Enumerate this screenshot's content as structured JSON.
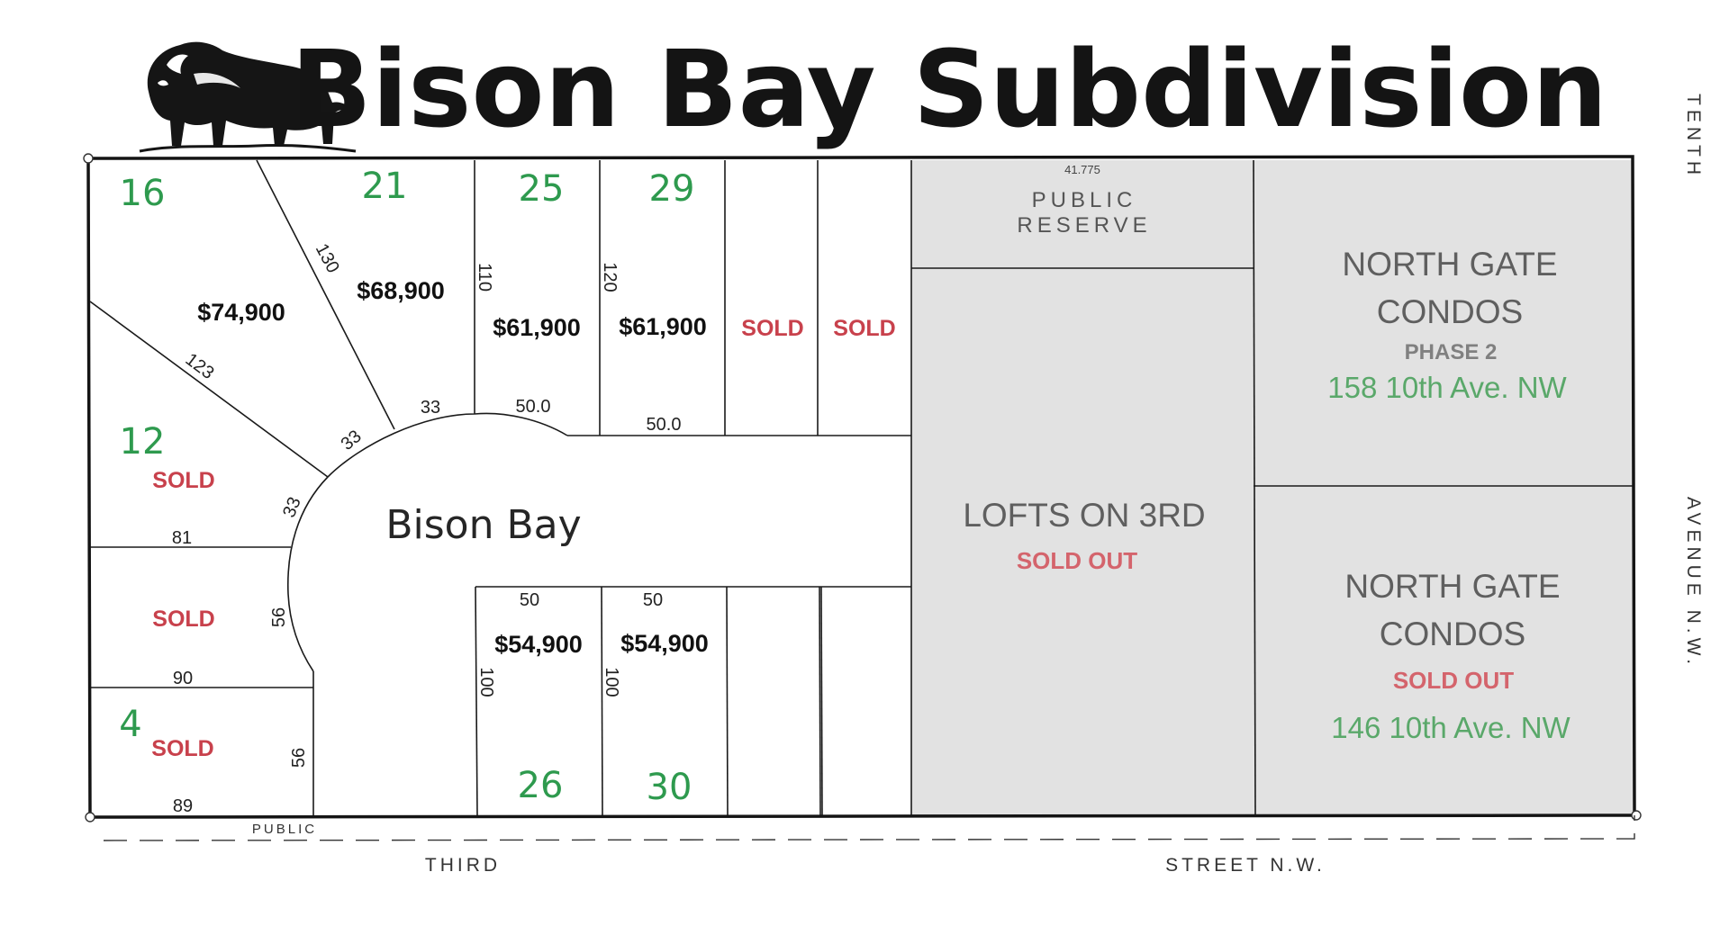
{
  "title": "Bison Bay Subdivision",
  "logo": {
    "icon": "bison-icon"
  },
  "colors": {
    "lot_number": "#2e9a4e",
    "sold": "#c8414c",
    "condo_text": "#5f5f5f",
    "address": "#5aa86a",
    "shaded_area": "#e2e2e2",
    "line": "#1a1a1a"
  },
  "street_name": "Bison Bay",
  "roads": {
    "third": "THIRD",
    "street_nw": "STREET  N.W.",
    "tenth": "TENTH",
    "avenue_nw": "AVENUE  N.W.",
    "public_bottom": "PUBLIC"
  },
  "public_reserve": {
    "line1": "PUBLIC",
    "line2": "RESERVE",
    "dimension": "41.775"
  },
  "lots": {
    "lot16": {
      "number": "16",
      "price": "$74,900"
    },
    "lot21": {
      "number": "21",
      "price": "$68,900"
    },
    "lot25": {
      "number": "25",
      "price": "$61,900"
    },
    "lot29": {
      "number": "29",
      "price": "$61,900"
    },
    "lot_n1": {
      "status": "SOLD"
    },
    "lot_n2": {
      "status": "SOLD"
    },
    "lot12": {
      "number": "12",
      "status": "SOLD"
    },
    "lot_w": {
      "status": "SOLD"
    },
    "lot4": {
      "number": "4",
      "status": "SOLD"
    },
    "lot26": {
      "number": "26",
      "price": "$54,900"
    },
    "lot30": {
      "number": "30",
      "price": "$54,900"
    }
  },
  "buildings": {
    "lofts": {
      "name": "LOFTS ON 3RD",
      "status": "SOLD OUT"
    },
    "north_gate_2": {
      "line1": "NORTH GATE",
      "line2": "CONDOS",
      "phase": "PHASE 2",
      "address": "158  10th Ave. NW"
    },
    "north_gate_1": {
      "line1": "NORTH GATE",
      "line2": "CONDOS",
      "status": "SOLD OUT",
      "address": "146  10th Ave. NW"
    }
  },
  "dimensions": {
    "d130": "130",
    "d123": "123",
    "d110": "110",
    "d120": "120",
    "d33a": "33",
    "d33b": "33",
    "d33c": "33",
    "d50a": "50.0",
    "d50b": "50.0",
    "d81": "81",
    "d56a": "56",
    "d56b": "56",
    "d90": "90",
    "d89": "89",
    "d50c": "50",
    "d50d": "50",
    "d100a": "100",
    "d100b": "100"
  }
}
